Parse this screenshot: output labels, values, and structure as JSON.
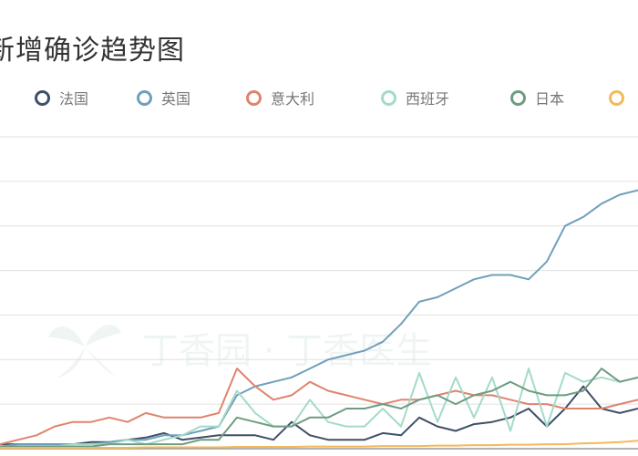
{
  "chart_data": {
    "type": "line",
    "title": "新增确诊趋势图",
    "grid": true,
    "legend_position": "top",
    "ylim": [
      0,
      7
    ],
    "x_count": 36,
    "series": [
      {
        "name": "法国",
        "color": "#3f4f67",
        "values": [
          0.1,
          0.1,
          0.1,
          0.1,
          0.1,
          0.15,
          0.15,
          0.2,
          0.25,
          0.35,
          0.2,
          0.25,
          0.3,
          0.3,
          0.3,
          0.2,
          0.6,
          0.3,
          0.2,
          0.2,
          0.2,
          0.35,
          0.3,
          0.7,
          0.5,
          0.4,
          0.55,
          0.6,
          0.7,
          0.9,
          0.5,
          0.9,
          1.4,
          0.9,
          0.8,
          0.9
        ]
      },
      {
        "name": "英国",
        "color": "#6f9fbb",
        "values": [
          0.05,
          0.1,
          0.1,
          0.1,
          0.1,
          0.1,
          0.15,
          0.2,
          0.2,
          0.3,
          0.3,
          0.4,
          0.5,
          1.2,
          1.4,
          1.5,
          1.6,
          1.8,
          2.0,
          2.1,
          2.2,
          2.4,
          2.8,
          3.3,
          3.4,
          3.6,
          3.8,
          3.9,
          3.9,
          3.8,
          4.2,
          5.0,
          5.2,
          5.5,
          5.7,
          5.8
        ]
      },
      {
        "name": "意大利",
        "color": "#e0836e",
        "values": [
          0.1,
          0.2,
          0.3,
          0.5,
          0.6,
          0.6,
          0.7,
          0.6,
          0.8,
          0.7,
          0.7,
          0.7,
          0.8,
          1.8,
          1.4,
          1.1,
          1.2,
          1.5,
          1.3,
          1.2,
          1.1,
          1.0,
          1.1,
          1.1,
          1.2,
          1.3,
          1.2,
          1.2,
          1.1,
          1.0,
          1.0,
          0.9,
          0.9,
          0.9,
          1.0,
          1.1
        ]
      },
      {
        "name": "西班牙",
        "color": "#a3dbc8",
        "values": [
          0.05,
          0.05,
          0.05,
          0.05,
          0.1,
          0.1,
          0.1,
          0.2,
          0.1,
          0.2,
          0.3,
          0.5,
          0.5,
          1.3,
          0.8,
          0.5,
          0.5,
          1.1,
          0.6,
          0.5,
          0.5,
          0.9,
          0.5,
          1.7,
          0.6,
          1.6,
          0.7,
          1.6,
          0.4,
          1.8,
          0.5,
          1.7,
          1.5,
          1.6,
          1.5,
          1.6
        ]
      },
      {
        "name": "日本",
        "color": "#6f9c81",
        "values": [
          0.05,
          0.05,
          0.05,
          0.05,
          0.05,
          0.05,
          0.1,
          0.1,
          0.1,
          0.1,
          0.1,
          0.2,
          0.2,
          0.7,
          0.6,
          0.5,
          0.5,
          0.7,
          0.7,
          0.9,
          0.9,
          1.0,
          0.9,
          1.1,
          1.2,
          1.0,
          1.2,
          1.3,
          1.5,
          1.3,
          1.2,
          1.2,
          1.3,
          1.8,
          1.5,
          1.6
        ]
      },
      {
        "name": "",
        "color": "#f3b95b",
        "values": [
          0.02,
          0.02,
          0.02,
          0.02,
          0.02,
          0.02,
          0.02,
          0.02,
          0.03,
          0.03,
          0.03,
          0.03,
          0.03,
          0.04,
          0.04,
          0.04,
          0.04,
          0.05,
          0.05,
          0.05,
          0.05,
          0.06,
          0.06,
          0.06,
          0.07,
          0.07,
          0.08,
          0.08,
          0.09,
          0.09,
          0.1,
          0.1,
          0.12,
          0.13,
          0.15,
          0.18
        ]
      }
    ]
  },
  "watermark": {
    "text": "丁香园 · 丁香医生"
  }
}
